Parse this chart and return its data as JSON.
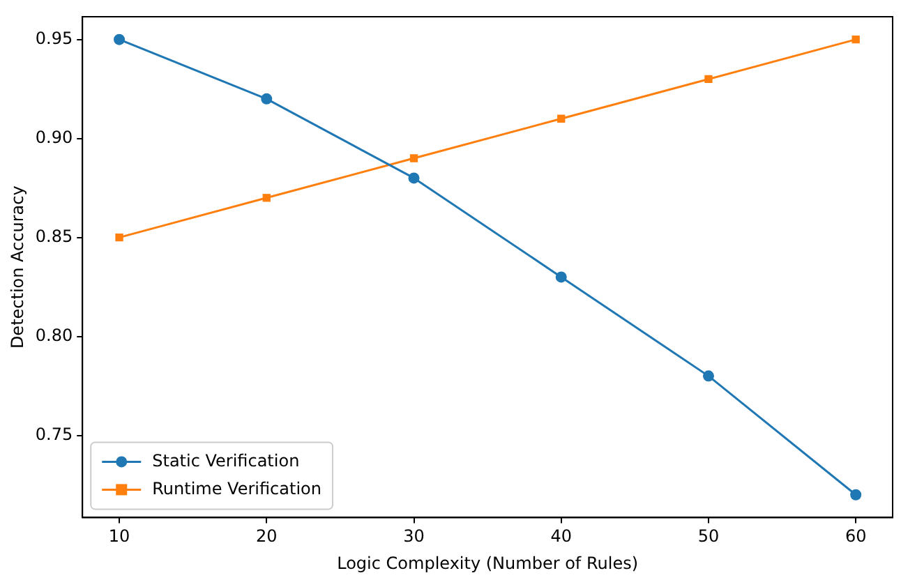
{
  "chart_data": {
    "type": "line",
    "xlabel": "Logic Complexity (Number of Rules)",
    "ylabel": "Detection Accuracy",
    "x": [
      10,
      20,
      30,
      40,
      50,
      60
    ],
    "series": [
      {
        "name": "Static Verification",
        "color": "#1f77b4",
        "marker": "circle",
        "values": [
          0.95,
          0.92,
          0.88,
          0.83,
          0.78,
          0.72
        ]
      },
      {
        "name": "Runtime Verification",
        "color": "#ff7f0e",
        "marker": "square",
        "values": [
          0.85,
          0.87,
          0.89,
          0.91,
          0.93,
          0.95
        ]
      }
    ],
    "xlim": [
      7.5,
      62.5
    ],
    "xticks": [
      10,
      20,
      30,
      40,
      50,
      60
    ],
    "ylim": [
      0.7085,
      0.9615
    ],
    "yticks": [
      {
        "value": 0.75,
        "label": "0.75"
      },
      {
        "value": 0.8,
        "label": "0.80"
      },
      {
        "value": 0.85,
        "label": "0.85"
      },
      {
        "value": 0.9,
        "label": "0.90"
      },
      {
        "value": 0.95,
        "label": "0.95"
      }
    ],
    "grid": false,
    "legend": "lower left",
    "line_style": "solid"
  }
}
